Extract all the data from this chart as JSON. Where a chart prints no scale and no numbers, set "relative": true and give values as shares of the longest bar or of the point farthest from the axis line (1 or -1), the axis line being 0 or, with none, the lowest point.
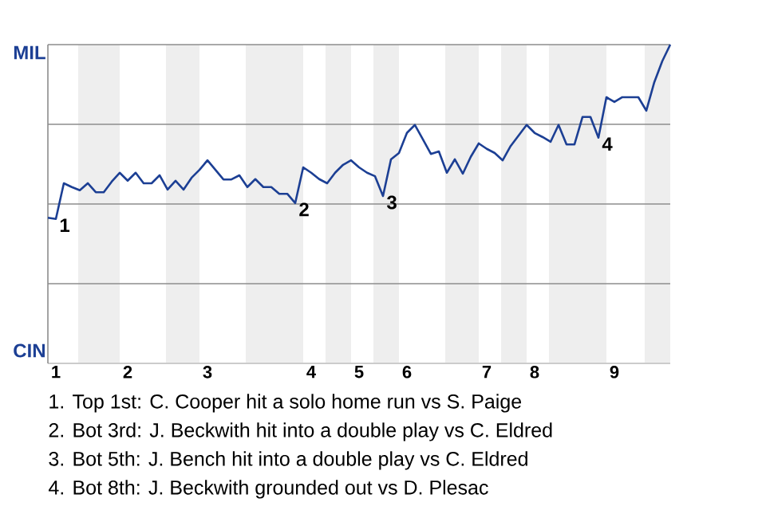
{
  "chart_data": {
    "type": "line",
    "relative": true,
    "categories": [
      null,
      "1",
      null,
      null,
      null,
      null,
      null,
      null,
      null,
      null,
      "2",
      null,
      null,
      null,
      null,
      null,
      null,
      null,
      null,
      null,
      "3",
      null,
      null,
      null,
      null,
      null,
      null,
      null,
      null,
      null,
      null,
      null,
      null,
      "4",
      null,
      null,
      null,
      null,
      null,
      "5",
      null,
      null,
      null,
      null,
      null,
      "6",
      null,
      null,
      null,
      null,
      null,
      null,
      null,
      null,
      null,
      "7",
      null,
      null,
      null,
      null,
      null,
      "8",
      null,
      null,
      null,
      null,
      null,
      null,
      null,
      null,
      null,
      "9",
      null,
      null,
      null,
      null,
      null,
      null,
      null
    ],
    "series": [
      {
        "color": "#1c3f94",
        "values": [
          0.457,
          0.453,
          0.565,
          0.553,
          0.543,
          0.565,
          0.537,
          0.537,
          0.57,
          0.598,
          0.573,
          0.598,
          0.565,
          0.565,
          0.59,
          0.545,
          0.573,
          0.545,
          0.582,
          0.607,
          0.637,
          0.607,
          0.577,
          0.577,
          0.59,
          0.553,
          0.578,
          0.553,
          0.553,
          0.532,
          0.532,
          0.503,
          0.615,
          0.598,
          0.578,
          0.565,
          0.598,
          0.623,
          0.637,
          0.615,
          0.598,
          0.587,
          0.525,
          0.64,
          0.66,
          0.723,
          0.748,
          0.703,
          0.657,
          0.665,
          0.598,
          0.64,
          0.595,
          0.648,
          0.69,
          0.673,
          0.66,
          0.637,
          0.682,
          0.715,
          0.748,
          0.723,
          0.71,
          0.695,
          0.748,
          0.687,
          0.687,
          0.773,
          0.773,
          0.708,
          0.835,
          0.82,
          0.835,
          0.835,
          0.835,
          0.793,
          0.882,
          0.948,
          1
        ]
      }
    ],
    "grid": "y",
    "annotations": [
      {
        "text": "1",
        "y": 0.453
      },
      {
        "text": "2",
        "y": 0.503
      },
      {
        "text": "3",
        "y": 0.525
      },
      {
        "text": "4",
        "y": 0.708
      },
      "MIL",
      "CIN",
      "1. Top 1st: C. Cooper hit a solo home run vs S. Paige",
      "2. Bot 3rd: J. Beckwith hit into a double play vs C. Eldred",
      "3. Bot 5th: J. Bench hit into a double play vs C. Eldred",
      "4. Bot 8th: J. Beckwith grounded out vs D. Plesac"
    ]
  }
}
